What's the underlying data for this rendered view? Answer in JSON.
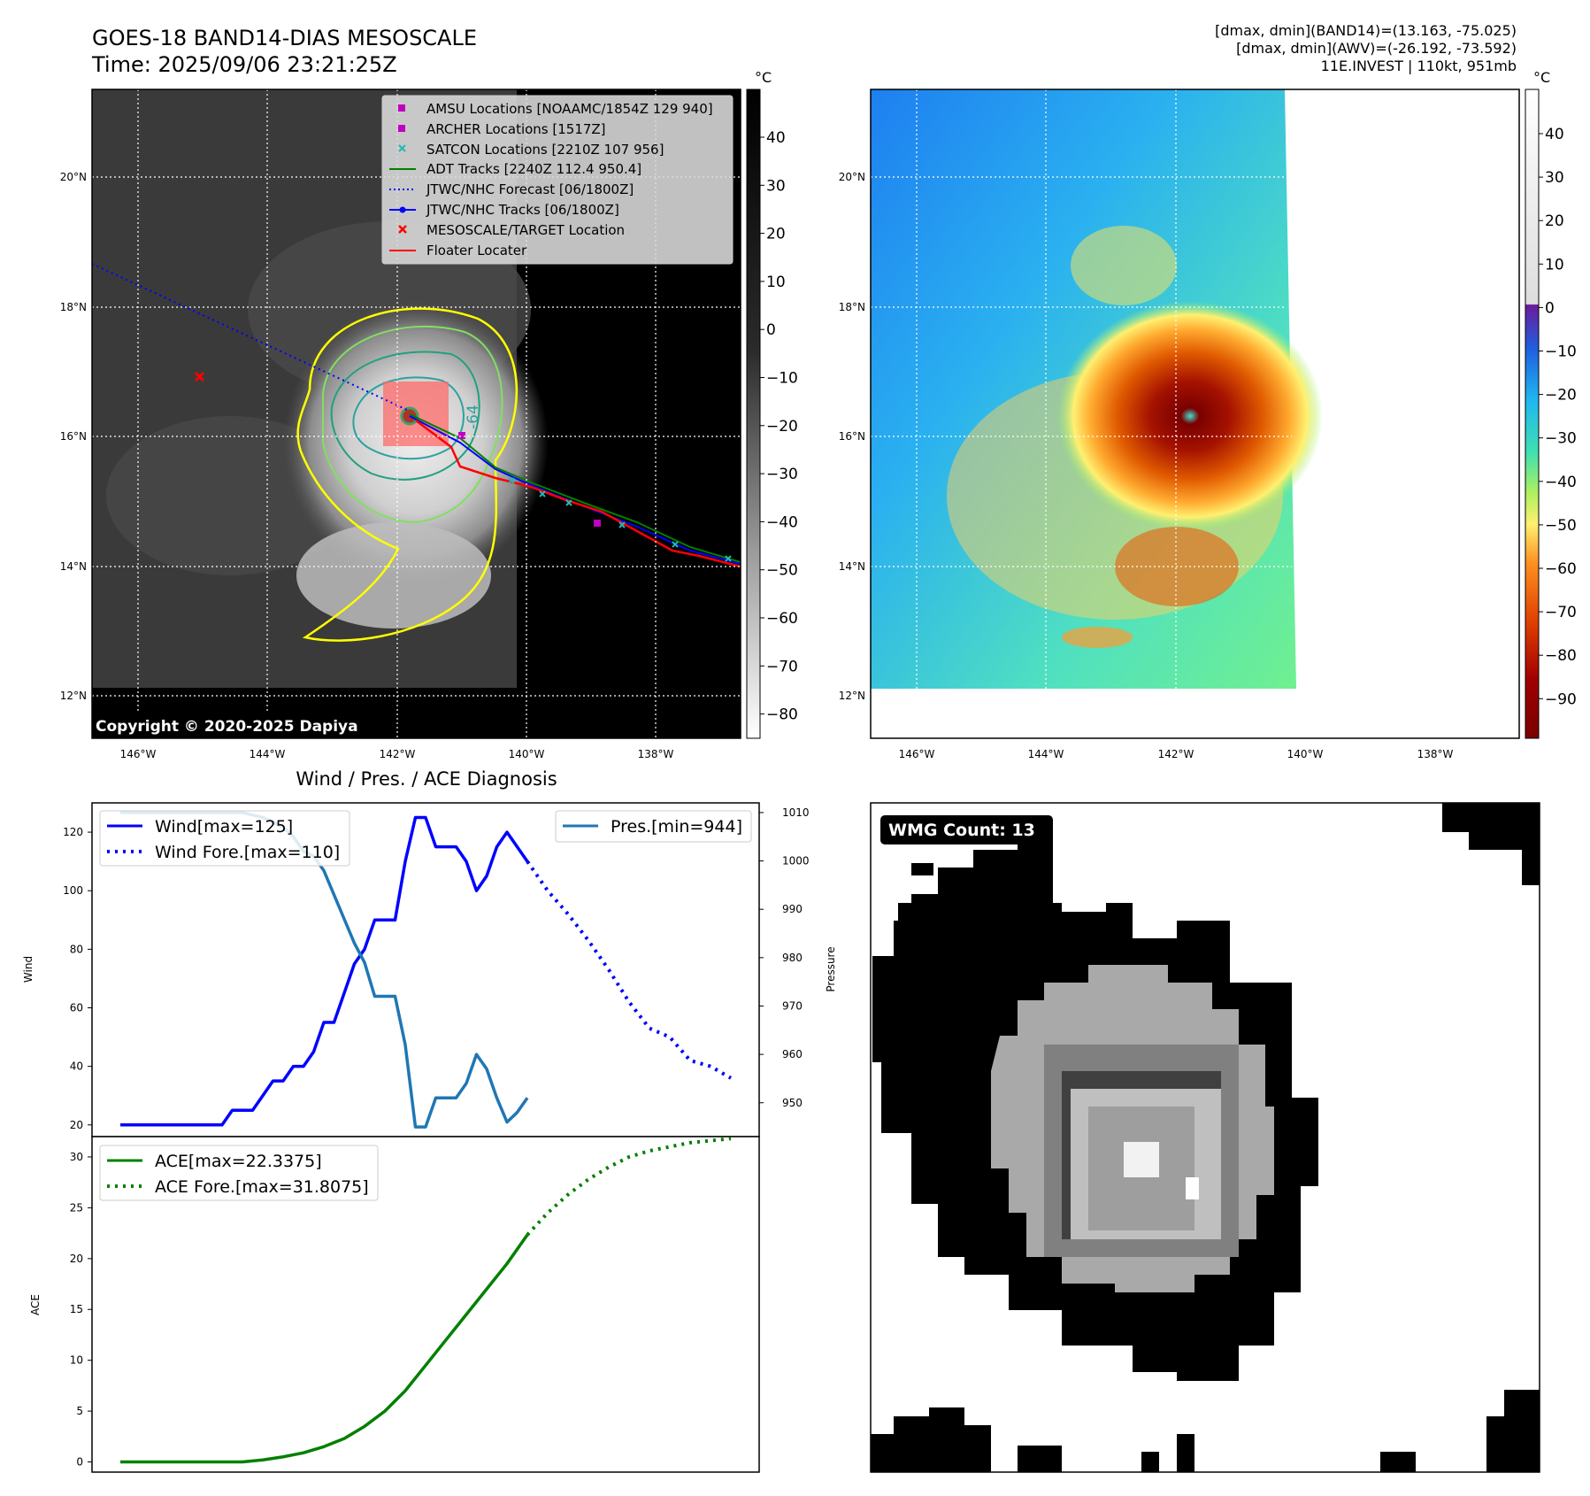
{
  "header": {
    "title_line1": "GOES-18 BAND14-DIAS MESOSCALE",
    "title_line2": "Time: 2025/09/06 23:21:25Z",
    "stats_line1": "[dmax, dmin](BAND14)=(13.163, -75.025)",
    "stats_line2": "[dmax, dmin](AWV)=(-26.192, -73.592)",
    "stats_line3": "11E.INVEST | 110kt, 951mb"
  },
  "map_panel": {
    "copyright": "Copyright © 2020-2025 Dapiya",
    "contour_label": "-64",
    "lat_labels": [
      "20°N",
      "18°N",
      "16°N",
      "14°N",
      "12°N"
    ],
    "lon_labels": [
      "146°W",
      "144°W",
      "142°W",
      "140°W",
      "138°W"
    ],
    "colorbar_unit": "°C",
    "colorbar_ticks": [
      "40",
      "30",
      "20",
      "10",
      "0",
      "−10",
      "−20",
      "−30",
      "−40",
      "−50",
      "−60",
      "−70",
      "−80"
    ],
    "legend": [
      {
        "label": "AMSU Locations [NOAAMC/1854Z 129 940]",
        "marker": "square",
        "color": "#c000c0"
      },
      {
        "label": "ARCHER Locations [1517Z]",
        "marker": "square",
        "color": "#c000c0"
      },
      {
        "label": "SATCON Locations [2210Z 107 956]",
        "marker": "x",
        "color": "#20b8b8"
      },
      {
        "label": "ADT Tracks [2240Z 112.4 950.4]",
        "marker": "line",
        "color": "#008000"
      },
      {
        "label": "JTWC/NHC Forecast [06/1800Z]",
        "marker": "dotted",
        "color": "#0000ff"
      },
      {
        "label": "JTWC/NHC Tracks [06/1800Z]",
        "marker": "line-dot",
        "color": "#0000ff"
      },
      {
        "label": "MESOSCALE/TARGET Location",
        "marker": "x",
        "color": "#ff0000"
      },
      {
        "label": "Floater Locater",
        "marker": "line",
        "color": "#ff0000"
      }
    ]
  },
  "awv_panel": {
    "colorbar_unit": "°C",
    "colorbar_ticks": [
      "40",
      "30",
      "20",
      "10",
      "0",
      "−10",
      "−20",
      "−30",
      "−40",
      "−50",
      "−60",
      "−70",
      "−80",
      "−90"
    ],
    "lat_labels": [
      "20°N",
      "18°N",
      "16°N",
      "14°N",
      "12°N"
    ],
    "lon_labels": [
      "146°W",
      "144°W",
      "142°W",
      "140°W",
      "138°W"
    ]
  },
  "wmg_panel": {
    "badge": "WMG Count: 13"
  },
  "chart_data": [
    {
      "type": "line",
      "title": "Wind / Pres. / ACE Diagnosis",
      "ylabel": "Wind",
      "ylabel_right": "Pressure",
      "ylim": [
        16,
        130
      ],
      "ylim_right": [
        943,
        1012
      ],
      "yticks": [
        20,
        40,
        60,
        80,
        100,
        120
      ],
      "yticks_right": [
        950,
        960,
        970,
        980,
        990,
        1000,
        1010
      ],
      "series": [
        {
          "name": "Wind[max=125]",
          "color": "#0000ff",
          "style": "solid",
          "x": [
            0,
            1,
            2,
            3,
            4,
            5,
            6,
            7,
            8,
            9,
            10,
            11,
            12,
            13,
            14,
            15,
            16,
            17,
            18,
            19,
            20,
            21,
            22,
            23,
            24,
            25,
            26,
            27,
            28,
            29,
            30,
            31,
            32,
            33,
            34,
            35,
            36,
            37,
            38,
            39,
            40
          ],
          "values": [
            20,
            20,
            20,
            20,
            20,
            20,
            20,
            20,
            20,
            20,
            20,
            25,
            25,
            25,
            30,
            35,
            35,
            40,
            40,
            45,
            55,
            55,
            65,
            75,
            80,
            90,
            90,
            90,
            110,
            125,
            125,
            115,
            115,
            115,
            110,
            100,
            105,
            115,
            120,
            115,
            110
          ]
        },
        {
          "name": "Wind Fore.[max=110]",
          "color": "#0000ff",
          "style": "dotted",
          "x": [
            40,
            42,
            44,
            46,
            48,
            50,
            52,
            54,
            56,
            58,
            60
          ],
          "values": [
            110,
            100,
            92,
            83,
            73,
            62,
            53,
            50,
            42,
            40,
            36
          ]
        },
        {
          "name": "Pres.[min=944]",
          "color": "#1f77b4",
          "style": "solid",
          "axis": "right",
          "x": [
            0,
            2,
            4,
            6,
            8,
            10,
            12,
            14,
            16,
            17,
            18,
            19,
            20,
            21,
            22,
            23,
            24,
            25,
            26,
            27,
            28,
            29,
            30,
            31,
            32,
            33,
            34,
            35,
            36,
            37,
            38,
            39,
            40
          ],
          "values": [
            1010,
            1010,
            1010,
            1010,
            1010,
            1010,
            1010,
            1009,
            1007,
            1005,
            1002,
            1001,
            998,
            993,
            988,
            983,
            979,
            972,
            972,
            972,
            962,
            945,
            945,
            951,
            951,
            951,
            954,
            960,
            957,
            951,
            946,
            948,
            951
          ]
        }
      ],
      "legend_left": [
        "Wind[max=125]",
        "Wind Fore.[max=110]"
      ],
      "legend_right": [
        "Pres.[min=944]"
      ]
    },
    {
      "type": "line",
      "ylabel": "ACE",
      "ylim": [
        -1,
        32
      ],
      "yticks": [
        0,
        5,
        10,
        15,
        20,
        25,
        30
      ],
      "series": [
        {
          "name": "ACE[max=22.3375]",
          "color": "#008000",
          "style": "solid",
          "x": [
            0,
            4,
            8,
            12,
            14,
            16,
            18,
            20,
            22,
            24,
            26,
            28,
            30,
            32,
            34,
            36,
            38,
            40
          ],
          "values": [
            0,
            0,
            0,
            0,
            0.2,
            0.5,
            0.9,
            1.5,
            2.3,
            3.5,
            5,
            7,
            9.5,
            12,
            14.5,
            17,
            19.5,
            22.3375
          ]
        },
        {
          "name": "ACE Fore.[max=31.8075]",
          "color": "#008000",
          "style": "dotted",
          "x": [
            40,
            42,
            44,
            46,
            48,
            50,
            52,
            54,
            56,
            58,
            60
          ],
          "values": [
            22.3375,
            24.5,
            26.3,
            27.8,
            29,
            30,
            30.6,
            31,
            31.4,
            31.6,
            31.8075
          ]
        }
      ]
    }
  ]
}
